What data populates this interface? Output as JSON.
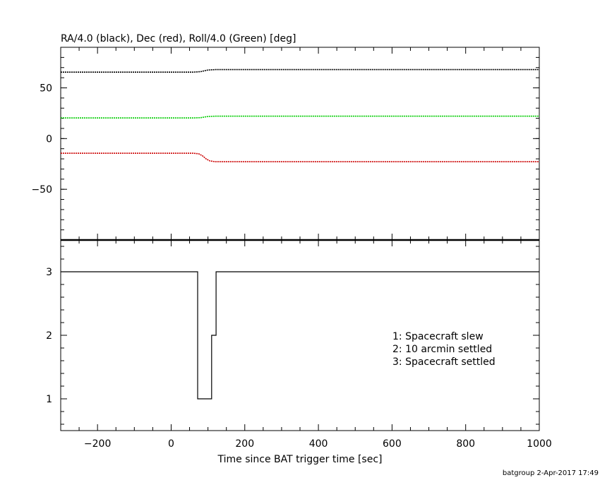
{
  "chart_data": [
    {
      "type": "line",
      "title": "RA/4.0 (black), Dec (red), Roll/4.0 (Green) [deg]",
      "xlim": [
        -300,
        1000
      ],
      "ylim": [
        -100,
        90
      ],
      "yticks": [
        50,
        0,
        -50
      ],
      "ytick_labels": [
        "50",
        "0",
        "−50"
      ],
      "grid": false,
      "series": [
        {
          "name": "RA/4.0",
          "color": "#000000",
          "x": [
            -300,
            60,
            80,
            100,
            120,
            1000
          ],
          "y": [
            65.5,
            65.5,
            66,
            67.6,
            68.0,
            68.0
          ]
        },
        {
          "name": "Roll/4.0",
          "color": "#00cc00",
          "x": [
            -300,
            60,
            80,
            100,
            120,
            1000
          ],
          "y": [
            20.3,
            20.3,
            20.6,
            21.8,
            22.1,
            22.1
          ]
        },
        {
          "name": "Dec",
          "color": "#cc0000",
          "x": [
            -300,
            60,
            75,
            85,
            95,
            105,
            120,
            1000
          ],
          "y": [
            -14.5,
            -14.5,
            -15,
            -17,
            -20,
            -22,
            -22.8,
            -22.8
          ]
        }
      ]
    },
    {
      "type": "line",
      "step": true,
      "xlabel": "Time since BAT trigger time [sec]",
      "xlim": [
        -300,
        1000
      ],
      "ylim": [
        0.5,
        3.5
      ],
      "xticks": [
        -200,
        0,
        200,
        400,
        600,
        800,
        1000
      ],
      "xtick_labels": [
        "−200",
        "0",
        "200",
        "400",
        "600",
        "800",
        "1000"
      ],
      "yticks": [
        1,
        2,
        3
      ],
      "ytick_labels": [
        "1",
        "2",
        "3"
      ],
      "grid": false,
      "series": [
        {
          "color": "#000000",
          "x": [
            -300,
            72,
            72,
            110,
            110,
            122,
            122,
            1000
          ],
          "y": [
            3,
            3,
            1,
            1,
            2,
            2,
            3,
            3
          ]
        }
      ],
      "annotations": [
        "1: Spacecraft slew",
        "2: 10 arcmin settled",
        "3: Spacecraft settled"
      ]
    }
  ],
  "footer": {
    "text": "batgroup  2-Apr-2017 17:49"
  }
}
